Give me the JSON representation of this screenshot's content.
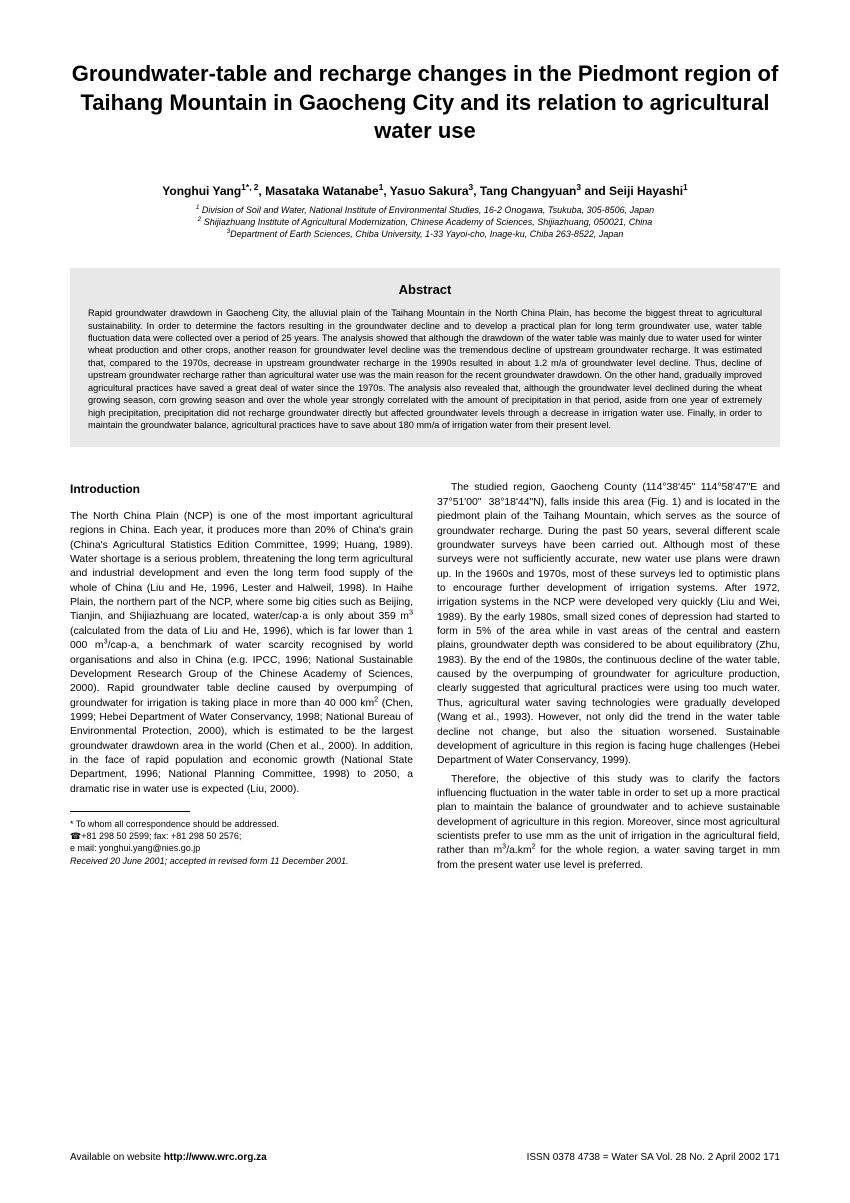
{
  "title": "Groundwater-table and recharge changes in the Piedmont region of Taihang Mountain in Gaocheng City and its relation to agricultural water use",
  "authors_html": "Yonghui Yang<sup>1*, 2</sup>, Masataka Watanabe<sup>1</sup>, Yasuo Sakura<sup>3</sup>, Tang Changyuan<sup>3</sup> and Seiji Hayashi<sup>1</sup>",
  "affil1": "1 Division of Soil and Water, National Institute of Environmental Studies, 16-2 Onogawa, Tsukuba, 305-8506, Japan",
  "affil2": "2 Shijiazhuang Institute of Agricultural Modernization, Chinese Academy of Sciences, Shijiazhuang, 050021, China",
  "affil3": "3Department of Earth Sciences, Chiba University, 1-33 Yayoi-cho, Inage-ku, Chiba 263-8522, Japan",
  "abstract_heading": "Abstract",
  "abstract": "Rapid groundwater drawdown in Gaocheng City, the alluvial plain of the Taihang Mountain in the North China Plain, has become the biggest threat to agricultural sustainability. In order to determine the factors resulting in the groundwater decline and to develop a practical plan for long term groundwater use, water table fluctuation data were collected over a period of 25 years. The analysis showed that although the drawdown of the water table was mainly due to water used for winter wheat production and other crops, another reason for groundwater level decline was the tremendous decline of upstream groundwater recharge. It was estimated that, compared to the 1970s, decrease in upstream groundwater recharge in the 1990s resulted in about 1.2 m/a of groundwater level decline. Thus, decline of upstream groundwater recharge rather than agricultural water use was the main reason for the recent groundwater drawdown. On the other hand, gradually improved agricultural practices have saved a great deal of water since the 1970s. The analysis also revealed that, although the groundwater level declined during the wheat growing season, corn growing season and over the whole year strongly correlated with the amount of precipitation in that period, aside from one year of extremely high precipitation, precipitation did not recharge groundwater directly but affected groundwater levels through a decrease in irrigation water use. Finally, in order to maintain the groundwater balance, agricultural practices have to save about 180 mm/a of irrigation water from their present level.",
  "intro_heading": "Introduction",
  "intro_p1_html": "The North China Plain (NCP) is one of the most important agricultural regions in China. Each year, it produces more than 20% of China's grain (China's Agricultural Statistics Edition Committee, 1999; Huang, 1989). Water shortage is a serious problem, threatening the long term agricultural and industrial development and even the long term food supply of the whole of China (Liu and He, 1996, Lester and Halweil, 1998). In Haihe Plain, the northern part of the NCP, where some big cities such as Beijing, Tianjin, and Shijiazhuang are located, water/cap·a is only about 359 m<sup>3</sup> (calculated from the data of Liu and He, 1996), which is far lower than 1 000 m<sup>3</sup>/cap·a, a benchmark of water scarcity recognised by world organisations and also in China (e.g. IPCC, 1996; National Sustainable Development Research Group of the Chinese Academy of Sciences, 2000). Rapid groundwater table decline caused by overpumping of groundwater for irrigation is taking place in more than 40 000 km<sup>2</sup> (Chen, 1999; Hebei Department of Water Conservancy, 1998; National Bureau of Environmental Protection, 2000), which is estimated to be the largest groundwater drawdown area in the world (Chen et al., 2000). In addition, in the face of rapid population and economic growth (National State Department, 1996; National Planning Committee, 1998) to 2050, a dramatic rise in water use is expected (Liu, 2000).",
  "col2_p1_html": "The studied region, Gaocheng County (114°38'45\" 114°58'47\"E and 37°51'00\"  38°18'44\"N), falls inside this area (Fig. 1) and is located in the piedmont plain of the Taihang Mountain, which serves as the source of groundwater recharge. During the past 50 years, several different scale groundwater surveys have been carried out. Although most of these surveys were not sufficiently accurate, new water use plans were drawn up. In the 1960s and 1970s, most of these surveys led to optimistic plans to encourage further development of irrigation systems. After 1972, irrigation systems in the NCP were developed very quickly (Liu and Wei, 1989). By the early 1980s, small sized cones of depression had started to form in 5% of the area while in vast areas of the central and eastern plains, groundwater depth was considered to be about equilibratory (Zhu, 1983). By the end of the 1980s, the continuous decline of the water table, caused by the overpumping of groundwater for agriculture production, clearly suggested that agricultural practices were using too much water. Thus, agricultural water saving technologies were gradually developed (Wang et al., 1993). However, not only did the trend in the water table decline not change, but also the situation worsened. Sustainable development of agriculture in this region is facing huge challenges (Hebei Department of Water Conservancy, 1999).",
  "col2_p2_html": "Therefore, the objective of this study was to clarify the factors influencing fluctuation in the water table in order to set up a more practical plan to maintain the balance of groundwater and to achieve sustainable development of agriculture in this region. Moreover, since most agricultural scientists prefer to use mm as the unit of irrigation in the agricultural field, rather than m<sup>3</sup>/a.km<sup>2</sup> for the whole region, a water saving target in mm from the present water use level is preferred.",
  "footnote_corr": "*  To whom all correspondence should be addressed.",
  "footnote_phone": "+81 298 50 2599;  fax: +81 298 50 2576;",
  "footnote_email": "e mail:  yonghui.yang@nies.go.jp",
  "footnote_received": "Received 20 June  2001; accepted in revised form 11 December 2001.",
  "footer_left_html": "Available on website <b>http://www.wrc.org.za</b>",
  "footer_right": "ISSN 0378 4738 = Water SA Vol. 28 No. 2 April 2002    171",
  "colors": {
    "background": "#ffffff",
    "text": "#000000",
    "abstract_bg": "#e8e8e8"
  },
  "fonts": {
    "title_size": 22,
    "authors_size": 12,
    "affil_size": 9,
    "abstract_size": 9.2,
    "body_size": 10.4,
    "footnote_size": 9,
    "footer_size": 10
  }
}
